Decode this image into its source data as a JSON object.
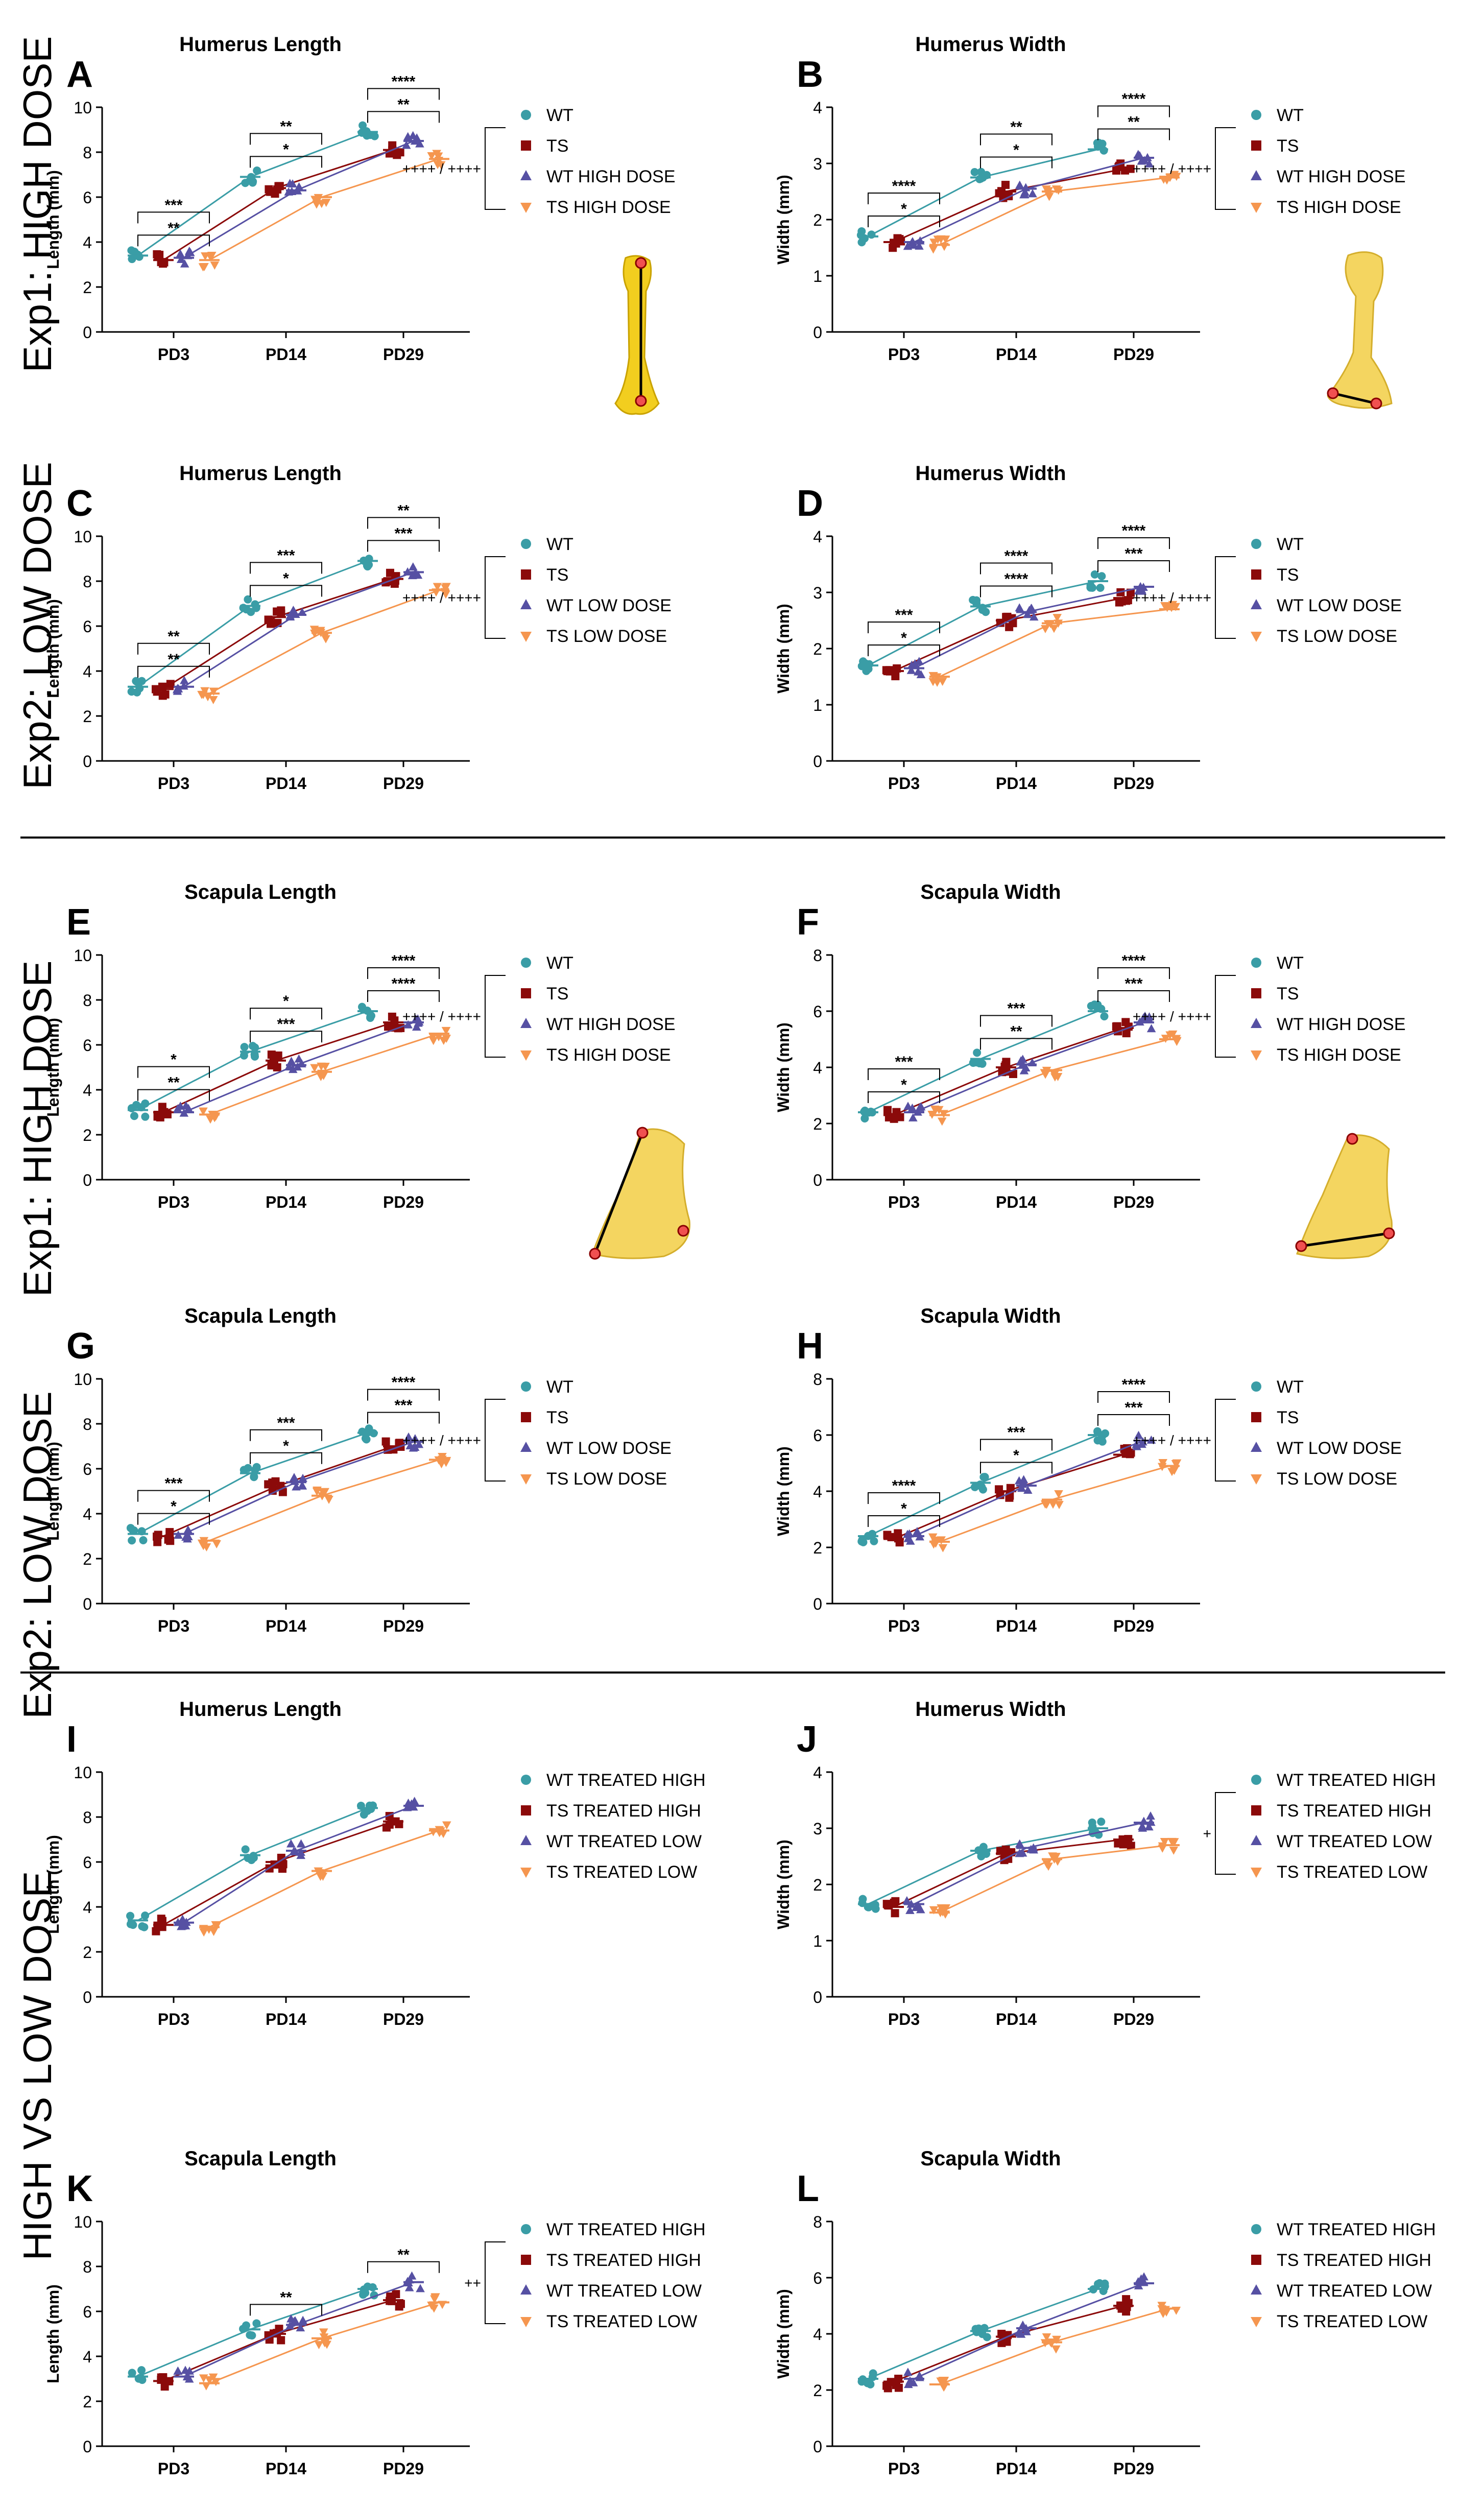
{
  "colors": {
    "wt": "#3A9DA6",
    "ts": "#8B0A0A",
    "wt_tr": "#5650A3",
    "ts_tr": "#F5964F",
    "wt_bone": "#F2D45A",
    "dark": "#000000"
  },
  "row_labels": [
    "Exp1: HIGH DOSE",
    "Exp2: LOW DOSE",
    "Exp1: HIGH DOSE",
    "Exp2: LOW DOSE",
    "HIGH VS LOW DOSE",
    "HIGH VS LOW DOSE"
  ],
  "timepoints": [
    "PD3",
    "PD14",
    "PD29"
  ],
  "chart_data": [
    {
      "letter": "A",
      "type": "scatter",
      "title": "Humerus Length",
      "ylabel": "Length (mm)",
      "ylim": [
        0,
        10
      ],
      "yticks": [
        0,
        2,
        4,
        6,
        8,
        10
      ],
      "legend": [
        "WT",
        "TS",
        "WT HIGH DOSE",
        "TS HIGH DOSE"
      ],
      "legend_markers": [
        "circle",
        "square",
        "triangle",
        "down"
      ],
      "series": [
        {
          "name": "WT",
          "values": [
            3.4,
            6.9,
            8.9
          ]
        },
        {
          "name": "TS",
          "values": [
            3.2,
            6.4,
            8.1
          ]
        },
        {
          "name": "WT HIGH DOSE",
          "values": [
            3.3,
            6.3,
            8.5
          ]
        },
        {
          "name": "TS HIGH DOSE",
          "values": [
            3.2,
            6.0,
            7.7
          ]
        }
      ],
      "brackets": [
        [
          "**",
          "*",
          "**"
        ],
        [
          "***",
          "**",
          "****"
        ]
      ],
      "side_sig": "++++ / ++++"
    },
    {
      "letter": "B",
      "type": "scatter",
      "title": "Humerus Width",
      "ylabel": "Width (mm)",
      "ylim": [
        0,
        4
      ],
      "yticks": [
        0,
        1,
        2,
        3,
        4
      ],
      "legend": [
        "WT",
        "TS",
        "WT HIGH DOSE",
        "TS HIGH DOSE"
      ],
      "legend_markers": [
        "circle",
        "square",
        "triangle",
        "down"
      ],
      "series": [
        {
          "name": "WT",
          "values": [
            1.7,
            2.75,
            3.25
          ]
        },
        {
          "name": "TS",
          "values": [
            1.6,
            2.5,
            2.9
          ]
        },
        {
          "name": "WT HIGH DOSE",
          "values": [
            1.6,
            2.55,
            3.1
          ]
        },
        {
          "name": "TS HIGH DOSE",
          "values": [
            1.55,
            2.5,
            2.75
          ]
        }
      ],
      "brackets": [
        [
          "*",
          "*",
          "**"
        ],
        [
          "****",
          "**",
          "****"
        ]
      ],
      "side_sig": "++++ / ++++"
    },
    {
      "letter": "C",
      "type": "scatter",
      "title": "Humerus Length",
      "ylabel": "Length (mm)",
      "ylim": [
        0,
        10
      ],
      "yticks": [
        0,
        2,
        4,
        6,
        8,
        10
      ],
      "legend": [
        "WT",
        "TS",
        "WT LOW DOSE",
        "TS LOW DOSE"
      ],
      "legend_markers": [
        "circle",
        "square",
        "triangle",
        "down"
      ],
      "series": [
        {
          "name": "WT",
          "values": [
            3.3,
            6.9,
            8.9
          ]
        },
        {
          "name": "TS",
          "values": [
            3.2,
            6.4,
            8.1
          ]
        },
        {
          "name": "WT LOW DOSE",
          "values": [
            3.3,
            6.5,
            8.4
          ]
        },
        {
          "name": "TS LOW DOSE",
          "values": [
            3.0,
            5.7,
            7.6
          ]
        }
      ],
      "brackets": [
        [
          "**",
          "*",
          "***"
        ],
        [
          "**",
          "***",
          "**"
        ]
      ],
      "side_sig": "++++ / ++++"
    },
    {
      "letter": "D",
      "type": "scatter",
      "title": "Humerus Width",
      "ylabel": "Width (mm)",
      "ylim": [
        0,
        4
      ],
      "yticks": [
        0,
        1,
        2,
        3,
        4
      ],
      "legend": [
        "WT",
        "TS",
        "WT LOW DOSE",
        "TS LOW DOSE"
      ],
      "legend_markers": [
        "circle",
        "square",
        "triangle",
        "down"
      ],
      "series": [
        {
          "name": "WT",
          "values": [
            1.7,
            2.75,
            3.2
          ]
        },
        {
          "name": "TS",
          "values": [
            1.6,
            2.5,
            2.9
          ]
        },
        {
          "name": "WT LOW DOSE",
          "values": [
            1.65,
            2.65,
            3.1
          ]
        },
        {
          "name": "TS LOW DOSE",
          "values": [
            1.5,
            2.45,
            2.7
          ]
        }
      ],
      "brackets": [
        [
          "*",
          "****",
          "***"
        ],
        [
          "***",
          "****",
          "****"
        ]
      ],
      "side_sig": "++++ / ++++"
    },
    {
      "letter": "E",
      "type": "scatter",
      "title": "Scapula Length",
      "ylabel": "Length (mm)",
      "ylim": [
        0,
        10
      ],
      "yticks": [
        0,
        2,
        4,
        6,
        8,
        10
      ],
      "legend": [
        "WT",
        "TS",
        "WT HIGH DOSE",
        "TS HIGH DOSE"
      ],
      "legend_markers": [
        "circle",
        "square",
        "triangle",
        "down"
      ],
      "series": [
        {
          "name": "WT",
          "values": [
            3.1,
            5.7,
            7.5
          ]
        },
        {
          "name": "TS",
          "values": [
            3.0,
            5.3,
            7.0
          ]
        },
        {
          "name": "WT HIGH DOSE",
          "values": [
            3.0,
            5.1,
            7.0
          ]
        },
        {
          "name": "TS HIGH DOSE",
          "values": [
            2.9,
            4.8,
            6.5
          ]
        }
      ],
      "brackets": [
        [
          "**",
          "***",
          "****"
        ],
        [
          "*",
          "*",
          "****"
        ]
      ],
      "side_sig": "++++ / ++++"
    },
    {
      "letter": "F",
      "type": "scatter",
      "title": "Scapula Width",
      "ylabel": "Width (mm)",
      "ylim": [
        0,
        8
      ],
      "yticks": [
        0,
        2,
        4,
        6,
        8
      ],
      "legend": [
        "WT",
        "TS",
        "WT HIGH DOSE",
        "TS HIGH DOSE"
      ],
      "legend_markers": [
        "circle",
        "square",
        "triangle",
        "down"
      ],
      "series": [
        {
          "name": "WT",
          "values": [
            2.4,
            4.3,
            6.0
          ]
        },
        {
          "name": "TS",
          "values": [
            2.3,
            4.0,
            5.4
          ]
        },
        {
          "name": "WT HIGH DOSE",
          "values": [
            2.4,
            4.1,
            5.6
          ]
        },
        {
          "name": "TS HIGH DOSE",
          "values": [
            2.3,
            3.9,
            5.0
          ]
        }
      ],
      "brackets": [
        [
          "*",
          "**",
          "***"
        ],
        [
          "***",
          "***",
          "****"
        ]
      ],
      "side_sig": "++++ / ++++"
    },
    {
      "letter": "G",
      "type": "scatter",
      "title": "Scapula Length",
      "ylabel": "Length (mm)",
      "ylim": [
        0,
        10
      ],
      "yticks": [
        0,
        2,
        4,
        6,
        8,
        10
      ],
      "legend": [
        "WT",
        "TS",
        "WT LOW DOSE",
        "TS LOW DOSE"
      ],
      "legend_markers": [
        "circle",
        "square",
        "triangle",
        "down"
      ],
      "series": [
        {
          "name": "WT",
          "values": [
            3.1,
            5.8,
            7.6
          ]
        },
        {
          "name": "TS",
          "values": [
            3.0,
            5.2,
            7.0
          ]
        },
        {
          "name": "WT LOW DOSE",
          "values": [
            3.1,
            5.4,
            7.2
          ]
        },
        {
          "name": "TS LOW DOSE",
          "values": [
            2.8,
            4.8,
            6.4
          ]
        }
      ],
      "brackets": [
        [
          "*",
          "*",
          "***"
        ],
        [
          "***",
          "***",
          "****"
        ]
      ],
      "side_sig": "++++ / ++++"
    },
    {
      "letter": "H",
      "type": "scatter",
      "title": "Scapula Width",
      "ylabel": "Width (mm)",
      "ylim": [
        0,
        8
      ],
      "yticks": [
        0,
        2,
        4,
        6,
        8
      ],
      "legend": [
        "WT",
        "TS",
        "WT LOW DOSE",
        "TS LOW DOSE"
      ],
      "legend_markers": [
        "circle",
        "square",
        "triangle",
        "down"
      ],
      "series": [
        {
          "name": "WT",
          "values": [
            2.4,
            4.3,
            6.0
          ]
        },
        {
          "name": "TS",
          "values": [
            2.3,
            4.0,
            5.3
          ]
        },
        {
          "name": "WT LOW DOSE",
          "values": [
            2.4,
            4.2,
            5.8
          ]
        },
        {
          "name": "TS LOW DOSE",
          "values": [
            2.2,
            3.7,
            4.9
          ]
        }
      ],
      "brackets": [
        [
          "*",
          "*",
          "***"
        ],
        [
          "****",
          "***",
          "****"
        ]
      ],
      "side_sig": "++++ / ++++"
    },
    {
      "letter": "I",
      "type": "scatter",
      "title": "Humerus Length",
      "ylabel": "Length (mm)",
      "ylim": [
        0,
        10
      ],
      "yticks": [
        0,
        2,
        4,
        6,
        8,
        10
      ],
      "legend": [
        "WT TREATED HIGH",
        "TS TREATED HIGH",
        "WT TREATED LOW",
        "TS TREATED LOW"
      ],
      "legend_markers": [
        "circle",
        "square",
        "triangle",
        "down"
      ],
      "series": [
        {
          "name": "WT TREATED HIGH",
          "values": [
            3.4,
            6.3,
            8.4
          ]
        },
        {
          "name": "TS TREATED HIGH",
          "values": [
            3.2,
            6.0,
            7.8
          ]
        },
        {
          "name": "WT TREATED LOW",
          "values": [
            3.3,
            6.5,
            8.5
          ]
        },
        {
          "name": "TS TREATED LOW",
          "values": [
            3.1,
            5.6,
            7.4
          ]
        }
      ],
      "brackets": [],
      "side_sig": ""
    },
    {
      "letter": "J",
      "type": "scatter",
      "title": "Humerus Width",
      "ylabel": "Width (mm)",
      "ylim": [
        0,
        4
      ],
      "yticks": [
        0,
        1,
        2,
        3,
        4
      ],
      "legend": [
        "WT TREATED HIGH",
        "TS TREATED HIGH",
        "WT TREATED LOW",
        "TS TREATED LOW"
      ],
      "legend_markers": [
        "circle",
        "square",
        "triangle",
        "down"
      ],
      "series": [
        {
          "name": "WT TREATED HIGH",
          "values": [
            1.65,
            2.6,
            3.0
          ]
        },
        {
          "name": "TS TREATED HIGH",
          "values": [
            1.6,
            2.55,
            2.8
          ]
        },
        {
          "name": "WT TREATED LOW",
          "values": [
            1.65,
            2.65,
            3.1
          ]
        },
        {
          "name": "TS TREATED LOW",
          "values": [
            1.5,
            2.45,
            2.7
          ]
        }
      ],
      "brackets": [],
      "side_sig": "+"
    },
    {
      "letter": "K",
      "type": "scatter",
      "title": "Scapula Length",
      "ylabel": "Length (mm)",
      "ylim": [
        0,
        10
      ],
      "yticks": [
        0,
        2,
        4,
        6,
        8,
        10
      ],
      "legend": [
        "WT TREATED HIGH",
        "TS TREATED HIGH",
        "WT TREATED LOW",
        "TS TREATED LOW"
      ],
      "legend_markers": [
        "circle",
        "square",
        "triangle",
        "down"
      ],
      "series": [
        {
          "name": "WT TREATED HIGH",
          "values": [
            3.1,
            5.2,
            7.0
          ]
        },
        {
          "name": "TS TREATED HIGH",
          "values": [
            2.9,
            5.0,
            6.5
          ]
        },
        {
          "name": "WT TREATED LOW",
          "values": [
            3.1,
            5.4,
            7.3
          ]
        },
        {
          "name": "TS TREATED LOW",
          "values": [
            2.8,
            4.8,
            6.4
          ]
        }
      ],
      "brackets": [
        [
          "**",
          "**"
        ]
      ],
      "side_sig": "++"
    },
    {
      "letter": "L",
      "type": "scatter",
      "title": "Scapula Width",
      "ylabel": "Width (mm)",
      "ylim": [
        0,
        8
      ],
      "yticks": [
        0,
        2,
        4,
        6,
        8
      ],
      "legend": [
        "WT TREATED HIGH",
        "TS TREATED HIGH",
        "WT TREATED LOW",
        "TS TREATED LOW"
      ],
      "legend_markers": [
        "circle",
        "square",
        "triangle",
        "down"
      ],
      "series": [
        {
          "name": "WT TREATED HIGH",
          "values": [
            2.4,
            4.1,
            5.6
          ]
        },
        {
          "name": "TS TREATED HIGH",
          "values": [
            2.3,
            3.9,
            5.0
          ]
        },
        {
          "name": "WT TREATED LOW",
          "values": [
            2.4,
            4.2,
            5.8
          ]
        },
        {
          "name": "TS TREATED LOW",
          "values": [
            2.2,
            3.7,
            4.9
          ]
        }
      ],
      "brackets": [],
      "side_sig": ""
    }
  ]
}
